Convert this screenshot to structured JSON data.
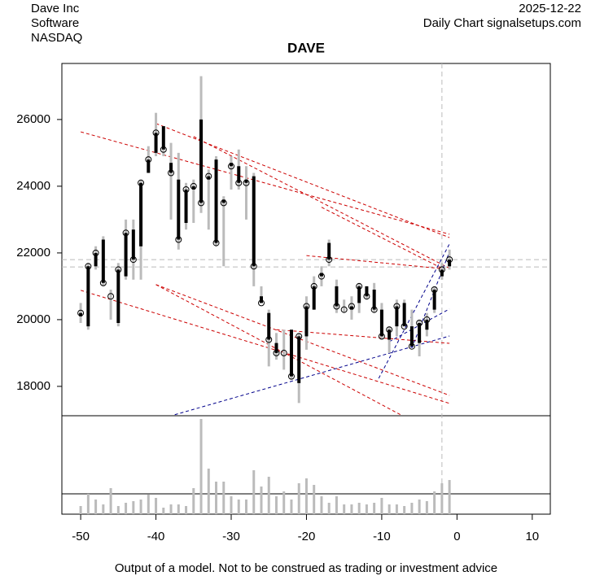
{
  "header": {
    "company": "Dave Inc",
    "sector": "Software",
    "exchange": "NASDAQ",
    "date": "2025-12-22",
    "source": "Daily Chart signalsetups.com"
  },
  "footer": "Output of a model. Not to be construed as trading or investment advice",
  "chart_data": {
    "type": "candlestick",
    "title": "DAVE",
    "x": [
      -50,
      -49,
      -48,
      -47,
      -46,
      -45,
      -44,
      -43,
      -42,
      -41,
      -40,
      -39,
      -38,
      -37,
      -36,
      -35,
      -34,
      -33,
      -32,
      -31,
      -30,
      -29,
      -28,
      -27,
      -26,
      -25,
      -24,
      -23,
      -22,
      -21,
      -20,
      -19,
      -18,
      -17,
      -16,
      -15,
      -14,
      -13,
      -12,
      -11,
      -10,
      -9,
      -8,
      -7,
      -6,
      -5,
      -4,
      -3,
      -2,
      -1
    ],
    "open": [
      20100,
      19800,
      21600,
      22400,
      20700,
      19900,
      21300,
      22700,
      22200,
      24400,
      25000,
      25800,
      24700,
      24200,
      22900,
      23900,
      26000,
      24200,
      24800,
      23600,
      24700,
      24600,
      24200,
      24300,
      20700,
      20200,
      19300,
      19000,
      19700,
      18100,
      19500,
      20300,
      21400,
      22300,
      21000,
      20300,
      20300,
      20500,
      21000,
      20900,
      20300,
      19400,
      19800,
      20500,
      19800,
      19300,
      19700,
      20300,
      21300,
      21600
    ],
    "high": [
      20500,
      21700,
      22200,
      22500,
      20900,
      21700,
      23000,
      23000,
      24200,
      25200,
      26200,
      25800,
      25300,
      25000,
      24100,
      24200,
      27300,
      24500,
      24900,
      23700,
      24900,
      25100,
      24600,
      24400,
      21000,
      20300,
      19600,
      19700,
      19700,
      19600,
      20700,
      21300,
      21600,
      22400,
      21200,
      20600,
      20700,
      21100,
      21000,
      21100,
      20500,
      19800,
      20600,
      20600,
      20300,
      20000,
      20200,
      21000,
      21700,
      22100
    ],
    "low": [
      19900,
      19700,
      21500,
      21000,
      20000,
      19800,
      21200,
      21200,
      21200,
      24400,
      24900,
      24900,
      23000,
      22100,
      22700,
      22900,
      23200,
      22700,
      22200,
      21600,
      23900,
      23900,
      23000,
      21000,
      20500,
      18600,
      18800,
      18500,
      18200,
      17500,
      19100,
      20300,
      21000,
      21600,
      20200,
      20200,
      20000,
      20200,
      20600,
      20200,
      19400,
      19000,
      19500,
      19800,
      19200,
      18900,
      19500,
      20200,
      21200,
      21500
    ],
    "close": [
      20200,
      21600,
      22000,
      21100,
      20700,
      21500,
      22600,
      21800,
      24100,
      24800,
      25600,
      25100,
      24400,
      22400,
      23900,
      24000,
      23500,
      24300,
      22300,
      23500,
      24600,
      24100,
      24100,
      21600,
      20500,
      19400,
      19000,
      19000,
      18300,
      19500,
      20400,
      21000,
      21300,
      21800,
      20400,
      20300,
      20400,
      21000,
      20700,
      20300,
      19500,
      19700,
      20400,
      19800,
      19200,
      19900,
      20000,
      20900,
      21500,
      21800
    ],
    "volume": [
      10,
      25,
      18,
      12,
      32,
      10,
      14,
      16,
      18,
      24,
      20,
      8,
      12,
      12,
      10,
      32,
      117,
      56,
      40,
      40,
      22,
      18,
      18,
      54,
      34,
      46,
      22,
      28,
      18,
      38,
      44,
      36,
      22,
      14,
      22,
      12,
      12,
      14,
      12,
      14,
      20,
      12,
      12,
      10,
      14,
      18,
      16,
      28,
      38,
      42
    ],
    "vlim": [
      0,
      121
    ],
    "xlim": [
      -52.5,
      12.4
    ],
    "xticks": [
      -50,
      -40,
      -30,
      -20,
      -10,
      0,
      10
    ],
    "ylim": [
      17120,
      27680
    ],
    "yticks": [
      18000,
      20000,
      22000,
      24000,
      26000
    ],
    "levels": [
      21800,
      21580
    ],
    "marker_x": -2,
    "trend_lines": [
      {
        "color": "#cc0000",
        "x": [
          -50,
          -1
        ],
        "y": [
          25630,
          22560
        ]
      },
      {
        "color": "#cc0000",
        "x": [
          -40,
          -1
        ],
        "y": [
          25880,
          22460
        ]
      },
      {
        "color": "#cc0000",
        "x": [
          -35,
          -1
        ],
        "y": [
          25490,
          21540
        ]
      },
      {
        "color": "#cc0000",
        "x": [
          -18,
          -2
        ],
        "y": [
          23370,
          21540
        ]
      },
      {
        "color": "#cc0000",
        "x": [
          -20,
          -2
        ],
        "y": [
          21920,
          21530
        ]
      },
      {
        "color": "#cc0000",
        "x": [
          -50,
          -1
        ],
        "y": [
          20880,
          17490
        ]
      },
      {
        "color": "#cc0000",
        "x": [
          -40,
          -1
        ],
        "y": [
          21050,
          17730
        ]
      },
      {
        "color": "#cc0000",
        "x": [
          -40,
          -7.5
        ],
        "y": [
          21050,
          17150
        ]
      },
      {
        "color": "#cc0000",
        "x": [
          -24,
          -1
        ],
        "y": [
          19700,
          19290
        ]
      },
      {
        "color": "#00008b",
        "x": [
          -37.5,
          -1
        ],
        "y": [
          17150,
          19510
        ]
      },
      {
        "color": "#00008b",
        "x": [
          -10.4,
          -1
        ],
        "y": [
          18240,
          22270
        ]
      },
      {
        "color": "#00008b",
        "x": [
          -9,
          -1
        ],
        "y": [
          19340,
          20320
        ]
      },
      {
        "color": "#00008b",
        "x": [
          -6,
          -1
        ],
        "y": [
          19150,
          22030
        ]
      }
    ]
  }
}
